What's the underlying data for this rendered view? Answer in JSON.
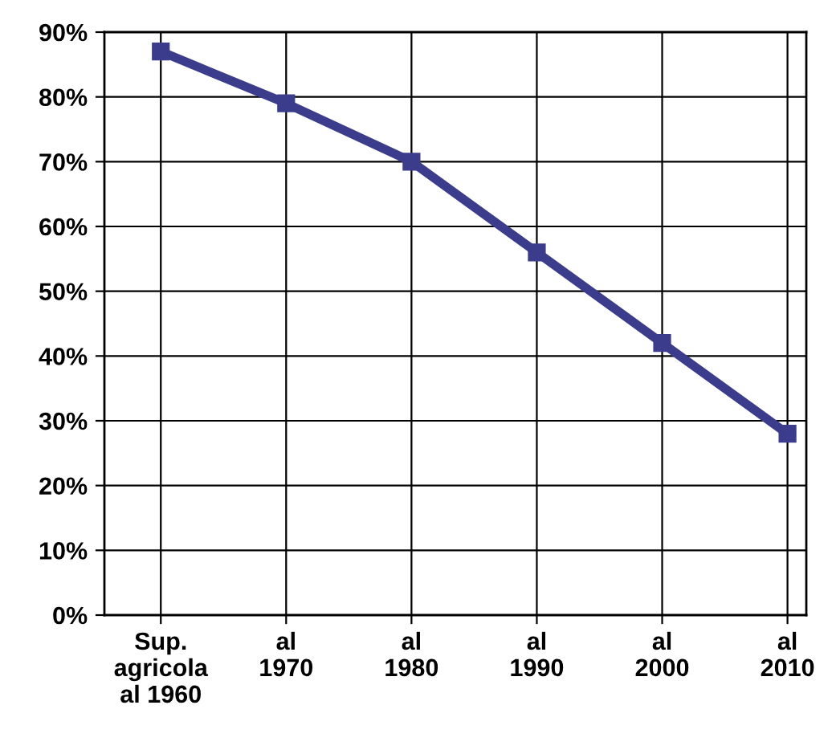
{
  "chart_data": {
    "type": "line",
    "categories": [
      "Sup.\nagricola\nal 1960",
      "al\n1970",
      "al\n1980",
      "al\n1990",
      "al\n2000",
      "al\n2010"
    ],
    "series": [
      {
        "color": "#3c3c8c",
        "values": [
          87,
          79,
          70,
          56,
          42,
          28
        ]
      }
    ],
    "ylim": [
      0,
      90
    ],
    "yticks": [
      {
        "value": 0,
        "label": "0%"
      },
      {
        "value": 10,
        "label": "10%"
      },
      {
        "value": 20,
        "label": "20%"
      },
      {
        "value": 30,
        "label": "30%"
      },
      {
        "value": 40,
        "label": "40%"
      },
      {
        "value": 50,
        "label": "50%"
      },
      {
        "value": 60,
        "label": "60%"
      },
      {
        "value": 70,
        "label": "70%"
      },
      {
        "value": 80,
        "label": "80%"
      },
      {
        "value": 90,
        "label": "90%"
      }
    ],
    "grid": true,
    "marker": "square",
    "line_style": "solid"
  }
}
